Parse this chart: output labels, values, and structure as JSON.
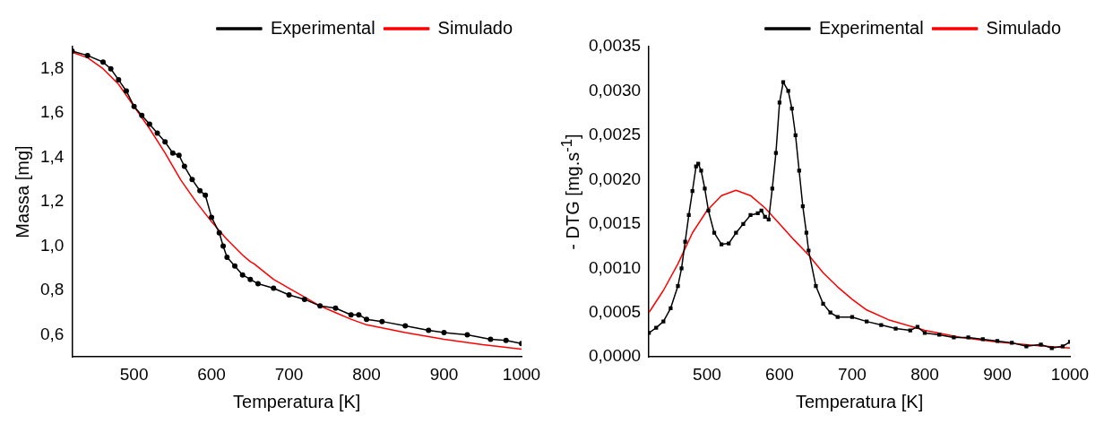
{
  "chart_data": [
    {
      "type": "line",
      "xlabel": "Temperatura [K]",
      "ylabel": "Massa [mg]",
      "xlim": [
        420,
        1000
      ],
      "ylim": [
        0.5,
        1.9
      ],
      "xticks": [
        500,
        600,
        700,
        800,
        900,
        1000
      ],
      "yticks": [
        {
          "value": 0.6,
          "label": "0,6"
        },
        {
          "value": 0.8,
          "label": "0,8"
        },
        {
          "value": 1.0,
          "label": "1,0"
        },
        {
          "value": 1.2,
          "label": "1,2"
        },
        {
          "value": 1.4,
          "label": "1,4"
        },
        {
          "value": 1.6,
          "label": "1,6"
        },
        {
          "value": 1.8,
          "label": "1,8"
        }
      ],
      "grid": false,
      "legend": "top right",
      "series": [
        {
          "name": "Experimental",
          "color": "#000000",
          "marker": "circle",
          "x": [
            420,
            440,
            460,
            470,
            480,
            490,
            500,
            510,
            520,
            530,
            540,
            550,
            558,
            565,
            575,
            585,
            592,
            600,
            610,
            615,
            620,
            630,
            640,
            650,
            660,
            680,
            700,
            720,
            740,
            760,
            780,
            790,
            800,
            820,
            850,
            880,
            900,
            930,
            960,
            980,
            1000
          ],
          "values": [
            1.88,
            1.86,
            1.83,
            1.8,
            1.75,
            1.7,
            1.63,
            1.59,
            1.55,
            1.51,
            1.47,
            1.42,
            1.41,
            1.36,
            1.3,
            1.25,
            1.23,
            1.13,
            1.06,
            1.0,
            0.95,
            0.91,
            0.87,
            0.85,
            0.83,
            0.81,
            0.78,
            0.76,
            0.73,
            0.72,
            0.69,
            0.69,
            0.67,
            0.66,
            0.64,
            0.62,
            0.61,
            0.6,
            0.58,
            0.575,
            0.56
          ]
        },
        {
          "name": "Simulado",
          "color": "#ff0000",
          "marker": "none",
          "x": [
            420,
            440,
            460,
            480,
            500,
            520,
            540,
            560,
            580,
            600,
            620,
            640,
            650,
            655,
            680,
            700,
            720,
            740,
            760,
            780,
            800,
            850,
            900,
            950,
            1000
          ],
          "values": [
            1.875,
            1.85,
            1.8,
            1.73,
            1.63,
            1.53,
            1.42,
            1.3,
            1.2,
            1.11,
            1.03,
            0.96,
            0.93,
            0.92,
            0.85,
            0.81,
            0.77,
            0.73,
            0.7,
            0.67,
            0.645,
            0.61,
            0.58,
            0.555,
            0.535
          ]
        }
      ]
    },
    {
      "type": "line",
      "xlabel": "Temperatura [K]",
      "ylabel": "- DTG [mg.s$^{-1}$]",
      "xlim": [
        420,
        1000
      ],
      "ylim": [
        0,
        0.0035
      ],
      "xticks": [
        500,
        600,
        700,
        800,
        900,
        1000
      ],
      "yticks": [
        {
          "value": 0,
          "label": "0,0000"
        },
        {
          "value": 0.0005,
          "label": "0,0005"
        },
        {
          "value": 0.001,
          "label": "0,0010"
        },
        {
          "value": 0.0015,
          "label": "0,0015"
        },
        {
          "value": 0.002,
          "label": "0,0020"
        },
        {
          "value": 0.0025,
          "label": "0,0025"
        },
        {
          "value": 0.003,
          "label": "0,0030"
        },
        {
          "value": 0.0035,
          "label": "0,0035"
        }
      ],
      "grid": false,
      "legend": "top right",
      "series": [
        {
          "name": "Experimental",
          "color": "#000000",
          "marker": "square",
          "x": [
            420,
            430,
            440,
            450,
            460,
            465,
            470,
            475,
            480,
            485,
            488,
            492,
            497,
            502,
            510,
            520,
            530,
            540,
            550,
            560,
            570,
            575,
            580,
            585,
            590,
            595,
            600,
            605,
            612,
            617,
            622,
            627,
            632,
            637,
            640,
            650,
            660,
            670,
            680,
            700,
            720,
            740,
            760,
            780,
            790,
            800,
            820,
            840,
            860,
            880,
            900,
            920,
            940,
            960,
            975,
            990,
            1000
          ],
          "values": [
            0.00027,
            0.00033,
            0.0004,
            0.00055,
            0.0008,
            0.001,
            0.0013,
            0.0016,
            0.00187,
            0.00215,
            0.00218,
            0.0021,
            0.0019,
            0.00165,
            0.0014,
            0.00127,
            0.00128,
            0.0014,
            0.0015,
            0.0016,
            0.00162,
            0.00165,
            0.00158,
            0.00155,
            0.0019,
            0.0023,
            0.00287,
            0.0031,
            0.003,
            0.0028,
            0.0025,
            0.0021,
            0.0017,
            0.0014,
            0.0012,
            0.0008,
            0.0006,
            0.0005,
            0.00045,
            0.00045,
            0.0004,
            0.00036,
            0.00032,
            0.0003,
            0.00034,
            0.00027,
            0.00025,
            0.00022,
            0.00022,
            0.0002,
            0.00018,
            0.00016,
            0.00012,
            0.00014,
            0.0001,
            0.00012,
            0.00017
          ]
        },
        {
          "name": "Simulado",
          "color": "#ff0000",
          "marker": "none",
          "x": [
            420,
            440,
            460,
            480,
            500,
            520,
            540,
            560,
            580,
            600,
            620,
            640,
            660,
            680,
            700,
            720,
            750,
            800,
            850,
            900,
            950,
            1000
          ],
          "values": [
            0.0005,
            0.00075,
            0.00105,
            0.0014,
            0.00165,
            0.00182,
            0.00188,
            0.00182,
            0.00168,
            0.0015,
            0.00132,
            0.00115,
            0.00095,
            0.00079,
            0.00065,
            0.00053,
            0.00042,
            0.0003,
            0.00022,
            0.00017,
            0.00013,
            0.0001
          ]
        }
      ]
    }
  ]
}
